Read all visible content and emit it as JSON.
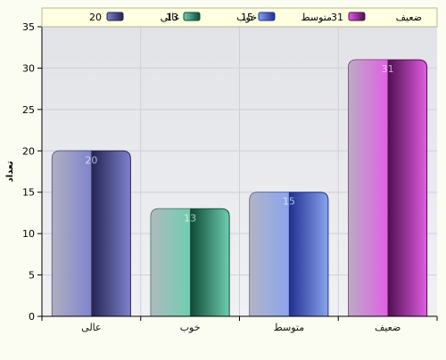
{
  "chart_data": {
    "type": "bar",
    "categories": [
      "عالی",
      "خوب",
      "متوسط",
      "ضعیف"
    ],
    "values": [
      20,
      13,
      15,
      31
    ],
    "value_labels": [
      "20",
      "13",
      "15",
      "31"
    ],
    "ylabel": "تعداد",
    "ylim": [
      0,
      35
    ],
    "yticks": [
      0,
      5,
      10,
      15,
      20,
      25,
      30,
      35
    ],
    "grid": true,
    "legend_position": "top",
    "legend": [
      {
        "label": "ضعیف",
        "value": "31"
      },
      {
        "label": "متوسط",
        "value": "15"
      },
      {
        "label": "خوب",
        "value": "13"
      },
      {
        "label": "عالی",
        "value": "20"
      }
    ],
    "colors": {
      "عالی": {
        "dark": "#232352",
        "light": "#7f82cc",
        "legend": "#6f72b4"
      },
      "خوب": {
        "dark": "#0e4a35",
        "light": "#6fcdb0",
        "legend": "#3f9e7e"
      },
      "متوسط": {
        "dark": "#1f2f8f",
        "light": "#8aa3ee",
        "legend": "#6688df"
      },
      "ضعیف": {
        "dark": "#4e0f4e",
        "light": "#e15ee4",
        "legend": "#b23cb4"
      }
    },
    "plot_background": "#e6e7ea",
    "legend_background": "#ffffe2"
  }
}
